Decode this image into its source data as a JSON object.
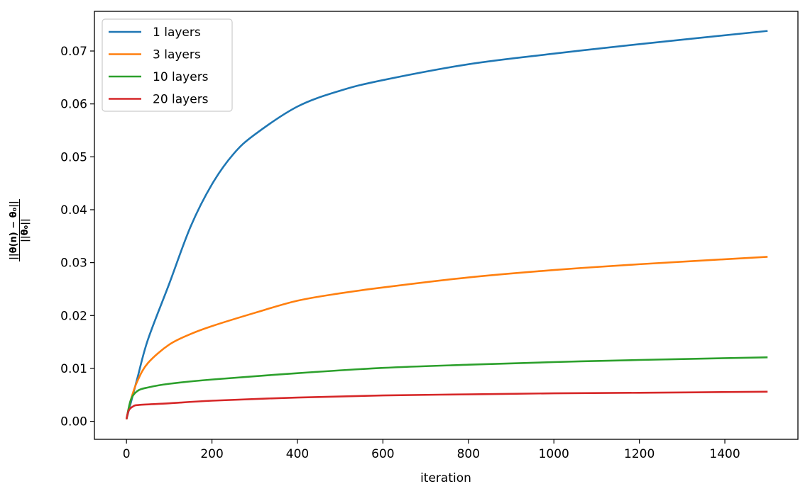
{
  "chart_data": {
    "type": "line",
    "title": "",
    "xlabel": "iteration",
    "ylabel": {
      "numerator": "||θ(n) − θ₀||",
      "denominator": "||θ₀||"
    },
    "xlim": [
      -75,
      1571
    ],
    "ylim": [
      -0.0034,
      0.0775
    ],
    "xticks": [
      0,
      200,
      400,
      600,
      800,
      1000,
      1200,
      1400
    ],
    "yticks": [
      0.0,
      0.01,
      0.02,
      0.03,
      0.04,
      0.05,
      0.06,
      0.07
    ],
    "ytick_labels": [
      "0.00",
      "0.01",
      "0.02",
      "0.03",
      "0.04",
      "0.05",
      "0.06",
      "0.07"
    ],
    "grid": false,
    "legend_position": "top-left",
    "series": [
      {
        "name": "1 layers",
        "color": "#1f77b4",
        "x": [
          0,
          25,
          50,
          100,
          150,
          200,
          250,
          300,
          400,
          500,
          600,
          800,
          1000,
          1200,
          1500
        ],
        "y": [
          0.0004,
          0.008,
          0.0154,
          0.026,
          0.0368,
          0.0448,
          0.0505,
          0.0542,
          0.0595,
          0.0625,
          0.0645,
          0.0675,
          0.0695,
          0.0713,
          0.0738
        ]
      },
      {
        "name": "3 layers",
        "color": "#ff7f0e",
        "x": [
          0,
          10,
          25,
          50,
          100,
          150,
          200,
          300,
          400,
          500,
          600,
          800,
          1000,
          1200,
          1500
        ],
        "y": [
          0.0004,
          0.004,
          0.0075,
          0.011,
          0.0145,
          0.0165,
          0.018,
          0.0205,
          0.0228,
          0.0242,
          0.0253,
          0.0272,
          0.0286,
          0.0297,
          0.0311
        ]
      },
      {
        "name": "10 layers",
        "color": "#2ca02c",
        "x": [
          0,
          10,
          25,
          50,
          100,
          200,
          400,
          600,
          800,
          1000,
          1200,
          1500
        ],
        "y": [
          0.0004,
          0.004,
          0.0057,
          0.0064,
          0.0071,
          0.0079,
          0.0091,
          0.0101,
          0.0107,
          0.0112,
          0.0116,
          0.0121
        ]
      },
      {
        "name": "20 layers",
        "color": "#d62728",
        "x": [
          0,
          5,
          15,
          30,
          100,
          200,
          400,
          600,
          800,
          1000,
          1200,
          1500
        ],
        "y": [
          0.0004,
          0.002,
          0.0028,
          0.0031,
          0.0034,
          0.0039,
          0.0045,
          0.0049,
          0.0051,
          0.0053,
          0.0054,
          0.0056
        ]
      }
    ]
  }
}
